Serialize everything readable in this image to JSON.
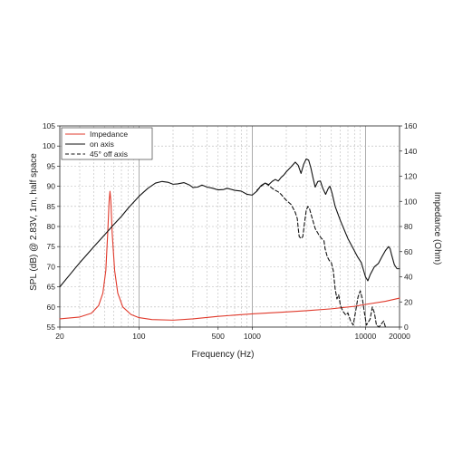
{
  "chart_data": {
    "type": "line",
    "xlabel": "Frequency (Hz)",
    "ylabel_left": "SPL (dB) @ 2.83V, 1m, half space",
    "ylabel_right": "Impedance (Ohm)",
    "x_scale": "log",
    "xlim": [
      20,
      20000
    ],
    "ylim_left": [
      55,
      105
    ],
    "ylim_right": [
      0,
      160
    ],
    "grid": true,
    "legend_placement": "top-left",
    "x_ticks": [
      {
        "value": 20,
        "label": "20"
      },
      {
        "value": 100,
        "label": "100"
      },
      {
        "value": 500,
        "label": "500"
      },
      {
        "value": 1000,
        "label": "1000"
      },
      {
        "value": 10000,
        "label": "10000"
      },
      {
        "value": 20000,
        "label": "20000"
      }
    ],
    "y_ticks_left": [
      "55",
      "60",
      "65",
      "70",
      "75",
      "80",
      "85",
      "90",
      "95",
      "100",
      "105"
    ],
    "y_ticks_right": [
      "0",
      "20",
      "40",
      "60",
      "80",
      "100",
      "120",
      "140",
      "160"
    ],
    "series": [
      {
        "name": "Impedance",
        "axis": "right",
        "color": "#e0392b",
        "dash": "solid",
        "points": [
          [
            20,
            6.5
          ],
          [
            30,
            8
          ],
          [
            38,
            11
          ],
          [
            44,
            17
          ],
          [
            48,
            27
          ],
          [
            51,
            45
          ],
          [
            53,
            75
          ],
          [
            54.5,
            100
          ],
          [
            55.5,
            108
          ],
          [
            56.5,
            100
          ],
          [
            58,
            75
          ],
          [
            61,
            45
          ],
          [
            65,
            27
          ],
          [
            72,
            16
          ],
          [
            85,
            10
          ],
          [
            100,
            7.5
          ],
          [
            130,
            6
          ],
          [
            200,
            5.5
          ],
          [
            300,
            6.5
          ],
          [
            500,
            8.5
          ],
          [
            700,
            9.5
          ],
          [
            1000,
            10.5
          ],
          [
            2000,
            12
          ],
          [
            3000,
            13
          ],
          [
            5000,
            14.5
          ],
          [
            8000,
            16.5
          ],
          [
            10000,
            18
          ],
          [
            15000,
            20.5
          ],
          [
            20000,
            23
          ]
        ]
      },
      {
        "name": "on axis",
        "axis": "left",
        "color": "#111111",
        "dash": "solid",
        "points": [
          [
            20,
            65
          ],
          [
            25,
            68.3
          ],
          [
            30,
            71
          ],
          [
            40,
            75
          ],
          [
            50,
            78
          ],
          [
            60,
            80.5
          ],
          [
            70,
            82.5
          ],
          [
            80,
            84.5
          ],
          [
            100,
            87.5
          ],
          [
            120,
            89.5
          ],
          [
            140,
            90.8
          ],
          [
            160,
            91.2
          ],
          [
            180,
            91
          ],
          [
            200,
            90.5
          ],
          [
            220,
            90.6
          ],
          [
            250,
            90.9
          ],
          [
            280,
            90.3
          ],
          [
            300,
            89.7
          ],
          [
            330,
            89.8
          ],
          [
            360,
            90.3
          ],
          [
            400,
            89.8
          ],
          [
            450,
            89.5
          ],
          [
            500,
            89.1
          ],
          [
            560,
            89.2
          ],
          [
            600,
            89.5
          ],
          [
            700,
            89
          ],
          [
            800,
            88.8
          ],
          [
            900,
            88
          ],
          [
            1000,
            87.8
          ],
          [
            1100,
            88.8
          ],
          [
            1200,
            90.2
          ],
          [
            1300,
            90.8
          ],
          [
            1400,
            90.4
          ],
          [
            1500,
            91.2
          ],
          [
            1600,
            91.7
          ],
          [
            1700,
            91.3
          ],
          [
            1800,
            92.2
          ],
          [
            1900,
            92.8
          ],
          [
            2000,
            93.6
          ],
          [
            2200,
            94.8
          ],
          [
            2400,
            96
          ],
          [
            2550,
            95.2
          ],
          [
            2700,
            93.2
          ],
          [
            2850,
            95.5
          ],
          [
            3000,
            96.8
          ],
          [
            3150,
            96.5
          ],
          [
            3300,
            94.5
          ],
          [
            3450,
            92
          ],
          [
            3600,
            89.8
          ],
          [
            3800,
            91.2
          ],
          [
            4000,
            91.3
          ],
          [
            4200,
            89.5
          ],
          [
            4450,
            88
          ],
          [
            4700,
            89.5
          ],
          [
            4850,
            90
          ],
          [
            5050,
            88.5
          ],
          [
            5400,
            85
          ],
          [
            6000,
            81.5
          ],
          [
            7000,
            77
          ],
          [
            7800,
            74.5
          ],
          [
            8500,
            72.5
          ],
          [
            9200,
            71
          ],
          [
            10000,
            67.5
          ],
          [
            10500,
            66.5
          ],
          [
            11000,
            68
          ],
          [
            12000,
            70
          ],
          [
            13000,
            70.8
          ],
          [
            14000,
            72.5
          ],
          [
            15000,
            74
          ],
          [
            16000,
            75
          ],
          [
            16500,
            74.5
          ],
          [
            17000,
            73
          ],
          [
            18000,
            70.5
          ],
          [
            19000,
            69.5
          ],
          [
            20000,
            69.5
          ]
        ]
      },
      {
        "name": "45° off axis",
        "axis": "left",
        "color": "#111111",
        "dash": "dashed",
        "points": [
          [
            1100,
            89
          ],
          [
            1200,
            90
          ],
          [
            1300,
            90.8
          ],
          [
            1400,
            90.2
          ],
          [
            1500,
            89.5
          ],
          [
            1600,
            89
          ],
          [
            1700,
            88.6
          ],
          [
            1800,
            88
          ],
          [
            1900,
            87.2
          ],
          [
            2000,
            86.5
          ],
          [
            2100,
            86
          ],
          [
            2200,
            85.5
          ],
          [
            2300,
            84.5
          ],
          [
            2400,
            83.5
          ],
          [
            2500,
            82
          ],
          [
            2550,
            79.5
          ],
          [
            2600,
            77.5
          ],
          [
            2700,
            77
          ],
          [
            2800,
            77.5
          ],
          [
            2900,
            81
          ],
          [
            3000,
            84
          ],
          [
            3100,
            85
          ],
          [
            3200,
            84.5
          ],
          [
            3350,
            82.5
          ],
          [
            3600,
            79.5
          ],
          [
            3900,
            77.8
          ],
          [
            4100,
            77
          ],
          [
            4300,
            76.5
          ],
          [
            4400,
            74.5
          ],
          [
            4600,
            72.5
          ],
          [
            4800,
            71.5
          ],
          [
            5000,
            71
          ],
          [
            5200,
            69
          ],
          [
            5400,
            64.5
          ],
          [
            5600,
            62
          ],
          [
            5800,
            63
          ],
          [
            6000,
            60.5
          ],
          [
            6300,
            59
          ],
          [
            6700,
            58
          ],
          [
            7000,
            58.5
          ],
          [
            7400,
            56.5
          ],
          [
            7800,
            55.5
          ],
          [
            8200,
            59
          ],
          [
            8600,
            62.5
          ],
          [
            9000,
            64
          ],
          [
            9400,
            62
          ],
          [
            9800,
            58.5
          ],
          [
            10200,
            55.5
          ],
          [
            11000,
            57
          ],
          [
            11500,
            60
          ],
          [
            12000,
            58.5
          ],
          [
            12500,
            55.5
          ],
          [
            13200,
            55
          ],
          [
            14000,
            56
          ],
          [
            14500,
            56.5
          ],
          [
            15000,
            55
          ]
        ]
      }
    ]
  }
}
